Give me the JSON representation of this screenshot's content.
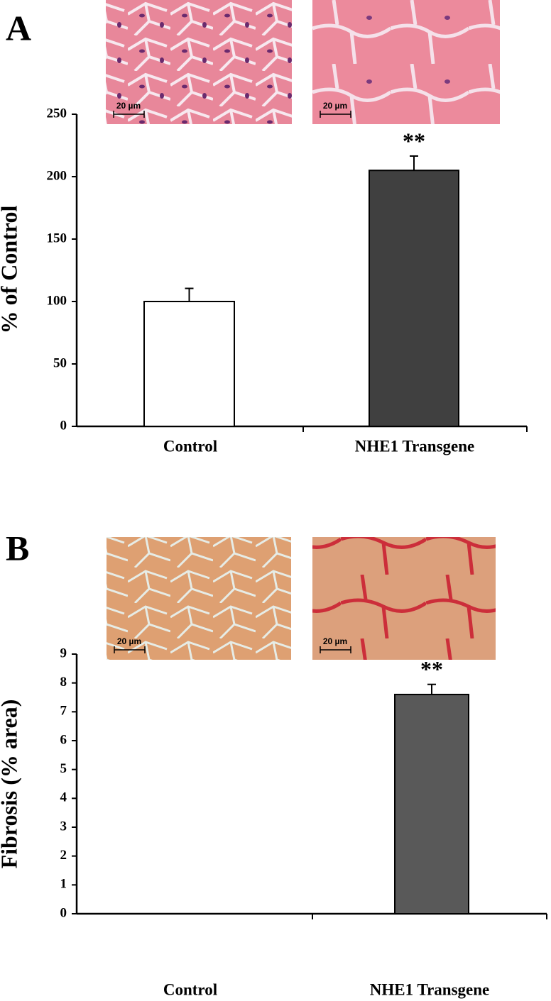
{
  "chart_data": [
    {
      "type": "bar",
      "panel": "A",
      "ylabel": "% of Control",
      "image_labels": [
        "20 µm",
        "20 µm"
      ],
      "categories": [
        "Control",
        "NHE1 Transgene"
      ],
      "values": [
        100,
        205
      ],
      "errors": [
        10.5,
        11.5
      ],
      "colors": [
        "#ffffff",
        "#404040"
      ],
      "annotations": [
        null,
        "**"
      ],
      "ylim": [
        0,
        250
      ],
      "yticks": [
        0,
        50,
        100,
        150,
        200,
        250
      ]
    },
    {
      "type": "bar",
      "panel": "B",
      "ylabel": "Fibrosis (% area)",
      "image_labels": [
        "20 µm",
        "20 µm"
      ],
      "categories": [
        "Control",
        "NHE1 Transgene"
      ],
      "values": [
        0,
        7.6
      ],
      "errors": [
        0,
        0.35
      ],
      "colors": [
        "#ffffff",
        "#595959"
      ],
      "annotations": [
        null,
        "**"
      ],
      "ylim": [
        0,
        9
      ],
      "yticks": [
        0,
        1,
        2,
        3,
        4,
        5,
        6,
        7,
        8,
        9
      ]
    }
  ]
}
